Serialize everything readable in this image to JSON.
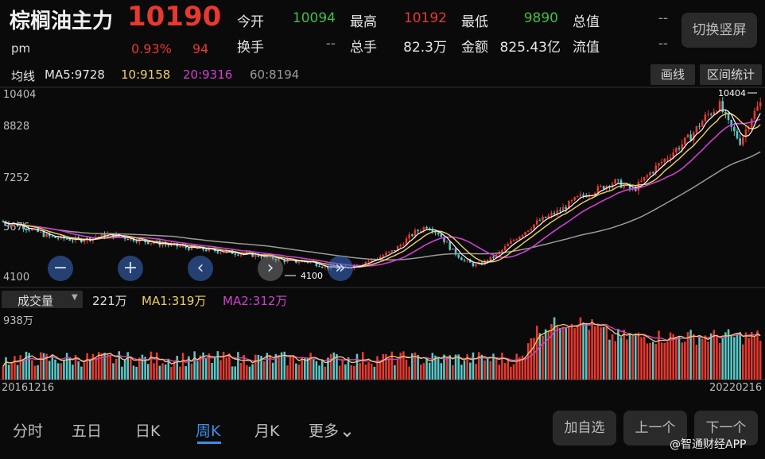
{
  "header": {
    "title": "棕榈油主力",
    "price": "10190",
    "session": "pm",
    "change_pct": "0.93%",
    "change": "94",
    "switch_button": "切换竖屏",
    "quote": [
      {
        "label": "今开",
        "value": "10094",
        "color": "green"
      },
      {
        "label": "最高",
        "value": "10192",
        "color": "red"
      },
      {
        "label": "最低",
        "value": "9890",
        "color": "green"
      },
      {
        "label": "总值",
        "value": "--",
        "color": "gray"
      },
      {
        "label": "换手",
        "value": "--",
        "color": "gray"
      },
      {
        "label": "总手",
        "value": "82.3万",
        "color": "white"
      },
      {
        "label": "金额",
        "value": "825.43亿",
        "color": "white"
      },
      {
        "label": "流值",
        "value": "--",
        "color": "gray"
      }
    ]
  },
  "ma_bar": {
    "label": "均线",
    "ma5": "MA5:9728",
    "ma10": "10:9158",
    "ma20": "20:9316",
    "ma60": "60:8194",
    "draw_line_button": "画线",
    "range_stats_button": "区间统计"
  },
  "price_axis": [
    "10404",
    "8828",
    "7252",
    "5676",
    "4100"
  ],
  "max_marker": "10404",
  "min_marker": "4100",
  "controls": {
    "zoom_out": "−",
    "zoom_in": "+",
    "move_left": "‹",
    "move_right": "›",
    "last": "»"
  },
  "volume_bar": {
    "selector": "成交量",
    "current": "221万",
    "ma1": "MA1:319万",
    "ma2": "MA2:312万",
    "axis_max": "938万"
  },
  "dates": {
    "start": "20161216",
    "end": "20220216"
  },
  "bottom_nav": {
    "tabs": [
      "分时",
      "五日",
      "日K",
      "周K",
      "月K",
      "更多"
    ],
    "active": "周K",
    "add_watch": "加自选",
    "prev": "上一个",
    "next": "下一个"
  },
  "watermark": "@智通财经APP",
  "colors": {
    "up": "#e8392f",
    "down": "#5bc8c8",
    "ma5": "#ffffff",
    "ma10": "#f0d060",
    "ma20": "#d040d0",
    "ma60": "#9a9a9a",
    "accent": "#3a8ee6"
  }
}
